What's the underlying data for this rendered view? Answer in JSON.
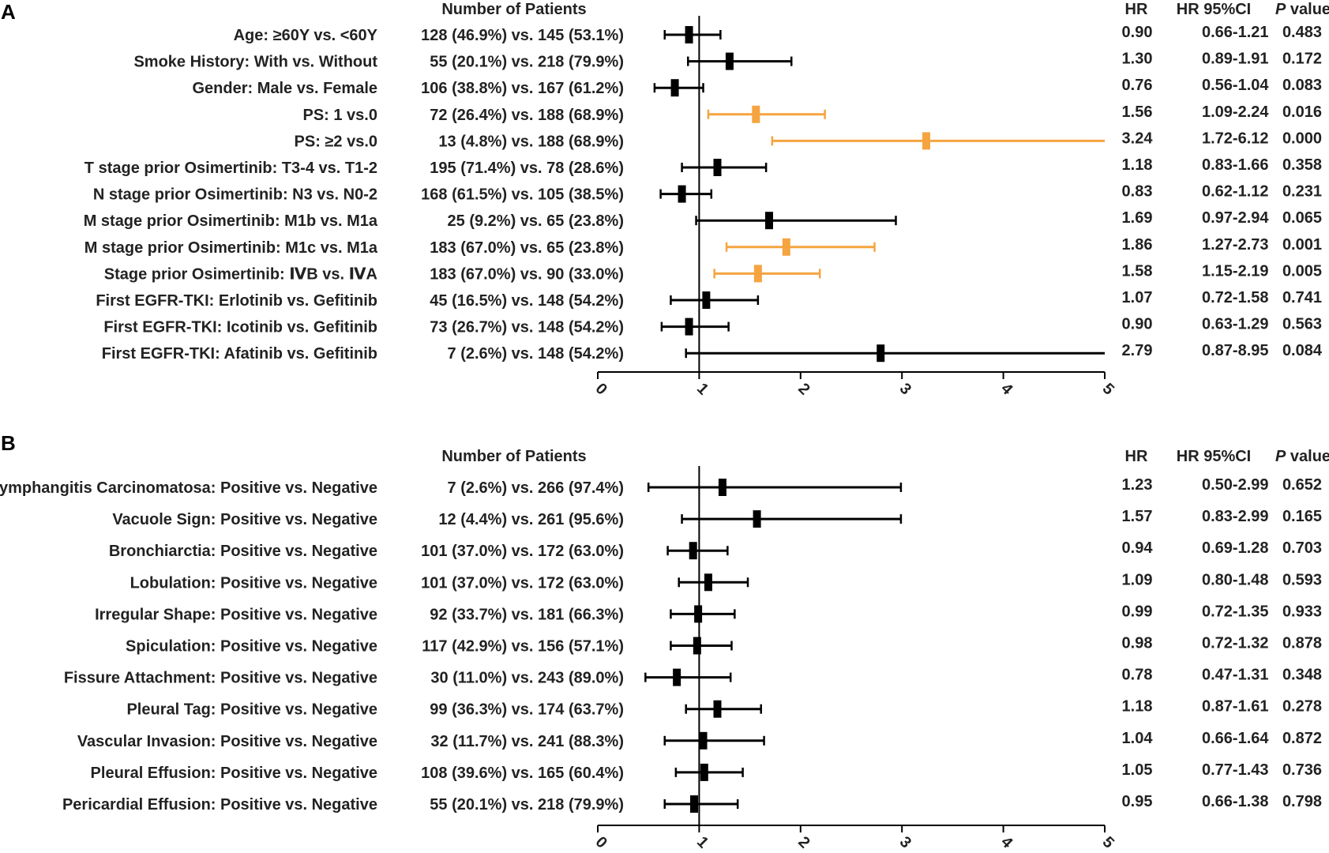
{
  "chart_data": [
    {
      "type": "forest",
      "panel": "A",
      "headers": {
        "patients": "Number of Patients",
        "hr": "HR",
        "ci": "HR 95%CI",
        "p_italic": "P",
        "p_rest": " value"
      },
      "xlim": [
        0,
        5
      ],
      "ticks": [
        0,
        1,
        2,
        3,
        4,
        5
      ],
      "reference_line": 1,
      "rows": [
        {
          "label": "Age: ≥60Y vs. <60Y",
          "patients": "128 (46.9%) vs. 145 (53.1%)",
          "hr": 0.9,
          "lo": 0.66,
          "hi": 1.21,
          "hr_text": "0.90",
          "ci_text": "0.66-1.21",
          "p": "0.483",
          "sig": false
        },
        {
          "label": "Smoke History: With vs. Without",
          "patients": "55 (20.1%) vs. 218 (79.9%)",
          "hr": 1.3,
          "lo": 0.89,
          "hi": 1.91,
          "hr_text": "1.30",
          "ci_text": "0.89-1.91",
          "p": "0.172",
          "sig": false
        },
        {
          "label": "Gender: Male vs. Female",
          "patients": "106 (38.8%) vs. 167 (61.2%)",
          "hr": 0.76,
          "lo": 0.56,
          "hi": 1.04,
          "hr_text": "0.76",
          "ci_text": "0.56-1.04",
          "p": "0.083",
          "sig": false
        },
        {
          "label": "PS: 1 vs.0",
          "patients": "72 (26.4%) vs. 188 (68.9%)",
          "hr": 1.56,
          "lo": 1.09,
          "hi": 2.24,
          "hr_text": "1.56",
          "ci_text": "1.09-2.24",
          "p": "0.016",
          "sig": true
        },
        {
          "label": "PS: ≥2 vs.0",
          "patients": "13 (4.8%) vs. 188 (68.9%)",
          "hr": 3.24,
          "lo": 1.72,
          "hi": 6.12,
          "hr_text": "3.24",
          "ci_text": "1.72-6.12",
          "p": "0.000",
          "sig": true
        },
        {
          "label": "T stage prior Osimertinib: T3-4 vs. T1-2",
          "patients": "195 (71.4%) vs. 78 (28.6%)",
          "hr": 1.18,
          "lo": 0.83,
          "hi": 1.66,
          "hr_text": "1.18",
          "ci_text": "0.83-1.66",
          "p": "0.358",
          "sig": false
        },
        {
          "label": "N stage prior Osimertinib: N3 vs. N0-2",
          "patients": "168 (61.5%) vs. 105 (38.5%)",
          "hr": 0.83,
          "lo": 0.62,
          "hi": 1.12,
          "hr_text": "0.83",
          "ci_text": "0.62-1.12",
          "p": "0.231",
          "sig": false
        },
        {
          "label": "M stage prior Osimertinib: M1b vs. M1a",
          "patients": "25 (9.2%) vs. 65 (23.8%)",
          "hr": 1.69,
          "lo": 0.97,
          "hi": 2.94,
          "hr_text": "1.69",
          "ci_text": "0.97-2.94",
          "p": "0.065",
          "sig": false
        },
        {
          "label": "M stage prior Osimertinib: M1c vs. M1a",
          "patients": "183 (67.0%) vs. 65 (23.8%)",
          "hr": 1.86,
          "lo": 1.27,
          "hi": 2.73,
          "hr_text": "1.86",
          "ci_text": "1.27-2.73",
          "p": "0.001",
          "sig": true
        },
        {
          "label": "Stage prior Osimertinib: ⅣB vs. ⅣA",
          "patients": "183 (67.0%) vs. 90 (33.0%)",
          "hr": 1.58,
          "lo": 1.15,
          "hi": 2.19,
          "hr_text": "1.58",
          "ci_text": "1.15-2.19",
          "p": "0.005",
          "sig": true
        },
        {
          "label": "First EGFR-TKI: Erlotinib vs. Gefitinib",
          "patients": "45 (16.5%) vs. 148 (54.2%)",
          "hr": 1.07,
          "lo": 0.72,
          "hi": 1.58,
          "hr_text": "1.07",
          "ci_text": "0.72-1.58",
          "p": "0.741",
          "sig": false
        },
        {
          "label": "First EGFR-TKI: Icotinib vs. Gefitinib",
          "patients": "73 (26.7%) vs. 148 (54.2%)",
          "hr": 0.9,
          "lo": 0.63,
          "hi": 1.29,
          "hr_text": "0.90",
          "ci_text": "0.63-1.29",
          "p": "0.563",
          "sig": false
        },
        {
          "label": "First EGFR-TKI: Afatinib vs. Gefitinib",
          "patients": "7 (2.6%) vs. 148 (54.2%)",
          "hr": 2.79,
          "lo": 0.87,
          "hi": 8.95,
          "hr_text": "2.79",
          "ci_text": "0.87-8.95",
          "p": "0.084",
          "sig": false
        }
      ]
    },
    {
      "type": "forest",
      "panel": "B",
      "headers": {
        "patients": "Number of Patients",
        "hr": "HR",
        "ci": "HR 95%CI",
        "p_italic": "P",
        "p_rest": " value"
      },
      "xlim": [
        0,
        5
      ],
      "ticks": [
        0,
        1,
        2,
        3,
        4,
        5
      ],
      "reference_line": 1,
      "rows": [
        {
          "label": "Lymphangitis Carcinomatosa: Positive vs. Negative",
          "patients": "7 (2.6%) vs. 266 (97.4%)",
          "hr": 1.23,
          "lo": 0.5,
          "hi": 2.99,
          "hr_text": "1.23",
          "ci_text": "0.50-2.99",
          "p": "0.652",
          "sig": false
        },
        {
          "label": "Vacuole Sign: Positive vs. Negative",
          "patients": "12 (4.4%) vs. 261 (95.6%)",
          "hr": 1.57,
          "lo": 0.83,
          "hi": 2.99,
          "hr_text": "1.57",
          "ci_text": "0.83-2.99",
          "p": "0.165",
          "sig": false
        },
        {
          "label": "Bronchiarctia: Positive vs. Negative",
          "patients": "101 (37.0%) vs. 172 (63.0%)",
          "hr": 0.94,
          "lo": 0.69,
          "hi": 1.28,
          "hr_text": "0.94",
          "ci_text": "0.69-1.28",
          "p": "0.703",
          "sig": false
        },
        {
          "label": "Lobulation: Positive vs. Negative",
          "patients": "101 (37.0%) vs. 172 (63.0%)",
          "hr": 1.09,
          "lo": 0.8,
          "hi": 1.48,
          "hr_text": "1.09",
          "ci_text": "0.80-1.48",
          "p": "0.593",
          "sig": false
        },
        {
          "label": "Irregular Shape: Positive vs. Negative",
          "patients": "92 (33.7%) vs. 181 (66.3%)",
          "hr": 0.99,
          "lo": 0.72,
          "hi": 1.35,
          "hr_text": "0.99",
          "ci_text": "0.72-1.35",
          "p": "0.933",
          "sig": false
        },
        {
          "label": "Spiculation: Positive vs. Negative",
          "patients": "117 (42.9%) vs. 156 (57.1%)",
          "hr": 0.98,
          "lo": 0.72,
          "hi": 1.32,
          "hr_text": "0.98",
          "ci_text": "0.72-1.32",
          "p": "0.878",
          "sig": false
        },
        {
          "label": "Fissure Attachment: Positive vs. Negative",
          "patients": "30 (11.0%) vs. 243 (89.0%)",
          "hr": 0.78,
          "lo": 0.47,
          "hi": 1.31,
          "hr_text": "0.78",
          "ci_text": "0.47-1.31",
          "p": "0.348",
          "sig": false
        },
        {
          "label": "Pleural Tag: Positive vs. Negative",
          "patients": "99 (36.3%) vs. 174 (63.7%)",
          "hr": 1.18,
          "lo": 0.87,
          "hi": 1.61,
          "hr_text": "1.18",
          "ci_text": "0.87-1.61",
          "p": "0.278",
          "sig": false
        },
        {
          "label": "Vascular Invasion: Positive vs. Negative",
          "patients": "32 (11.7%) vs. 241 (88.3%)",
          "hr": 1.04,
          "lo": 0.66,
          "hi": 1.64,
          "hr_text": "1.04",
          "ci_text": "0.66-1.64",
          "p": "0.872",
          "sig": false
        },
        {
          "label": "Pleural Effusion: Positive vs. Negative",
          "patients": "108 (39.6%) vs. 165 (60.4%)",
          "hr": 1.05,
          "lo": 0.77,
          "hi": 1.43,
          "hr_text": "1.05",
          "ci_text": "0.77-1.43",
          "p": "0.736",
          "sig": false
        },
        {
          "label": "Pericardial Effusion: Positive vs. Negative",
          "patients": "55 (20.1%) vs. 218 (79.9%)",
          "hr": 0.95,
          "lo": 0.66,
          "hi": 1.38,
          "hr_text": "0.95",
          "ci_text": "0.66-1.38",
          "p": "0.798",
          "sig": false
        }
      ]
    }
  ],
  "colors": {
    "significant": "#f5a440",
    "default": "#000000"
  }
}
